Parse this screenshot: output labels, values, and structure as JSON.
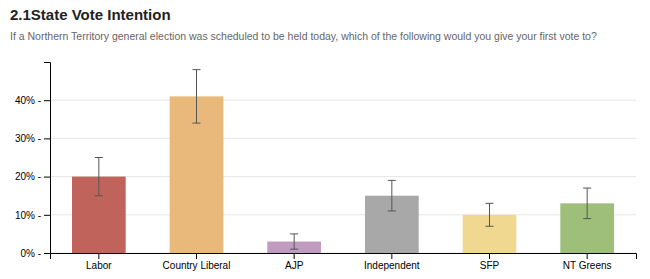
{
  "chart_data": {
    "type": "bar",
    "title": "2.1State Vote Intention",
    "subtitle": "If a Northern Territory general election was scheduled to be held today, which of the following would you give your first vote to?",
    "categories": [
      "Labor",
      "Country Liberal",
      "AJP",
      "Independent",
      "SFP",
      "NT Greens"
    ],
    "values": [
      20,
      41,
      3,
      15,
      10,
      13
    ],
    "errors": [
      5,
      7,
      2,
      4,
      3,
      4
    ],
    "colors": [
      "#c0635a",
      "#e8b97a",
      "#c09abf",
      "#a8a8a8",
      "#f0d890",
      "#9dbf7a"
    ],
    "ylim": [
      0,
      50
    ],
    "yticks": [
      {
        "value": 0,
        "label": "0% -"
      },
      {
        "value": 10,
        "label": "10% -"
      },
      {
        "value": 20,
        "label": "20% -"
      },
      {
        "value": 30,
        "label": "30% -"
      },
      {
        "value": 40,
        "label": "40% -"
      }
    ],
    "grid": true
  }
}
